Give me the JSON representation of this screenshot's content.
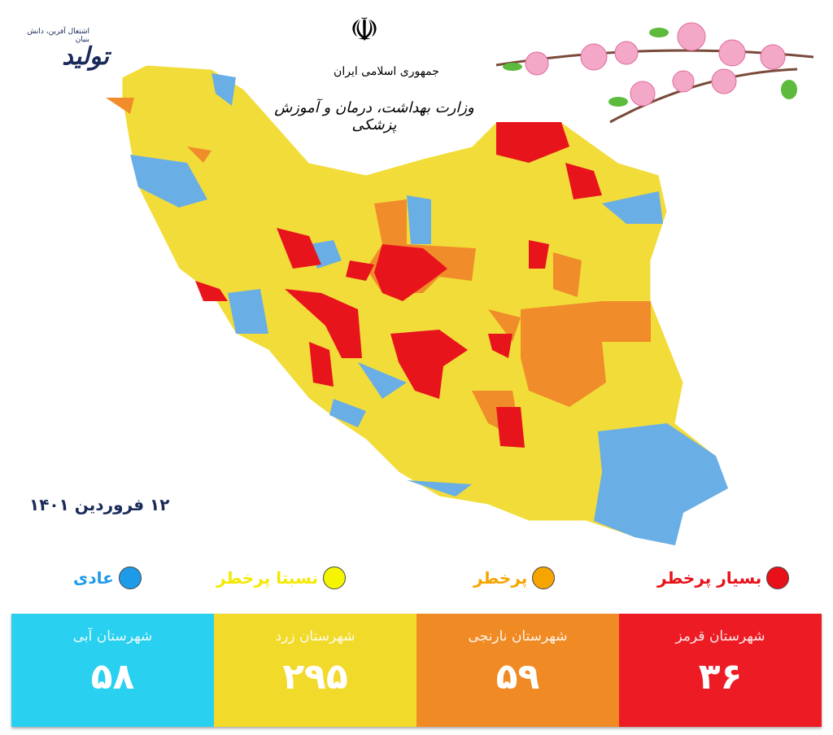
{
  "header": {
    "line1": "جمهوری اسلامی ایران",
    "line2": "وزارت بهداشت، درمان و آموزش پزشکی",
    "emblem": "iran-emblem"
  },
  "logo": {
    "text": "تولید",
    "subtext": "اشتغال آفرین، دانش بنیان"
  },
  "date": "۱۲ فروردین ۱۴۰۱",
  "legend": [
    {
      "label": "بسیار پرخطر",
      "color": "#e8111a"
    },
    {
      "label": "پرخطر",
      "color": "#f6a500"
    },
    {
      "label": "نسبتا پرخطر",
      "color": "#f5f500"
    },
    {
      "label": "عادی",
      "color": "#1e9be8"
    }
  ],
  "counts": [
    {
      "label": "شهرستان قرمز",
      "value": "۳۶",
      "color": "#ed1c24"
    },
    {
      "label": "شهرستان نارنجی",
      "value": "۵۹",
      "color": "#f08a24"
    },
    {
      "label": "شهرستان زرد",
      "value": "۲۹۵",
      "color": "#f2da2a"
    },
    {
      "label": "شهرستان آبی",
      "value": "۵۸",
      "color": "#29d0f0"
    }
  ],
  "map_colors": {
    "yellow": "#f2dc3a",
    "orange": "#f08c2a",
    "red": "#e8141c",
    "blue": "#6aaee6"
  }
}
